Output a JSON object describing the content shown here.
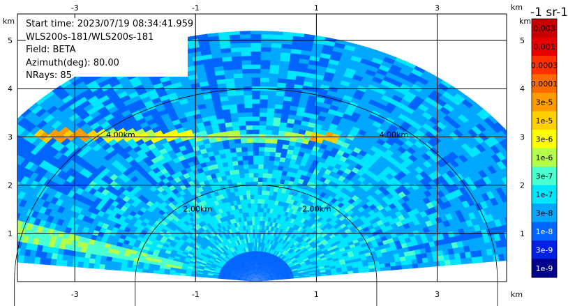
{
  "info": {
    "start_time": "Start time: 2023/07/19 08:34:41.959",
    "station": "WLS200s-181/WLS200s-181",
    "field": "Field: BETA",
    "azimuth": "Azimuth(deg): 80.00",
    "nrays": "NRays: 85"
  },
  "colorbar": {
    "units_label": "-1 sr-1",
    "ticks": [
      "0.003",
      "0.001",
      "0.0003",
      "0.0001",
      "3e-5",
      "1e-5",
      "3e-6",
      "1e-6",
      "3e-7",
      "1e-7",
      "3e-8",
      "1e-8",
      "3e-9",
      "1e-9"
    ],
    "colors": [
      "#c80000",
      "#e60000",
      "#ff3000",
      "#ff6a00",
      "#ff9a00",
      "#ffd000",
      "#ffff00",
      "#b4ff4a",
      "#4affd0",
      "#00e6ff",
      "#00a8ff",
      "#0064ff",
      "#0020e6",
      "#00008c"
    ]
  },
  "chart_data": {
    "type": "heatmap",
    "subtype": "RHI range-height scan",
    "field": "BETA",
    "x_unit": "km",
    "y_unit": "km",
    "xlim": [
      -3.95,
      4.15
    ],
    "ylim": [
      0,
      5.55
    ],
    "x_ticks": [
      "-3",
      "-1",
      "1",
      "3"
    ],
    "y_ticks": [
      "1",
      "2",
      "3",
      "4",
      "5"
    ],
    "range_rings": [
      {
        "range_km": 2,
        "label": "2.00km"
      },
      {
        "range_km": 4,
        "label": "4.00km"
      }
    ],
    "max_range_km": 5.2,
    "colorscale": "log10 backscatter, 1e-9 to 0.003",
    "notes": [
      {
        "feature": "aerosol layer",
        "height_km": 3.0,
        "x_from_km": -3.6,
        "x_to_km": 1.4,
        "peak_value": "3e-5"
      },
      {
        "feature": "near-field low backscatter",
        "height_km": 0.35,
        "x_from_km": -0.8,
        "x_to_km": 0.8,
        "value": "1e-8"
      }
    ],
    "grid": true
  }
}
